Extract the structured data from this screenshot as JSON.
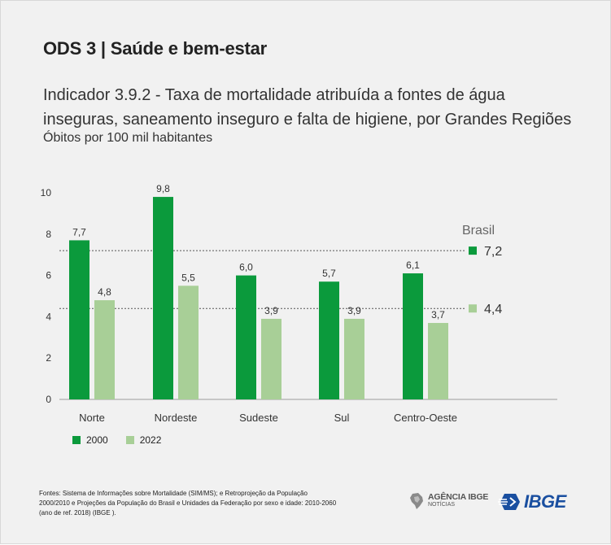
{
  "header": {
    "title": "ODS 3 | Saúde e bem-estar",
    "subtitle_line1": "Indicador 3.9.2 - Taxa de mortalidade atribuída a fontes de água",
    "subtitle_line2": "inseguras, saneamento inseguro e falta de higiene, por Grandes Regiões",
    "unit": "Óbitos por 100 mil habitantes"
  },
  "chart_data": {
    "type": "bar",
    "categories": [
      "Norte",
      "Nordeste",
      "Sudeste",
      "Sul",
      "Centro-Oeste"
    ],
    "series": [
      {
        "name": "2000",
        "values": [
          7.7,
          9.8,
          6.0,
          5.7,
          6.1
        ],
        "labels": [
          "7,7",
          "9,8",
          "6,0",
          "5,7",
          "6,1"
        ],
        "color": "#0b9a3c"
      },
      {
        "name": "2022",
        "values": [
          4.8,
          5.5,
          3.9,
          3.9,
          3.7
        ],
        "labels": [
          "4,8",
          "5,5",
          "3,9",
          "3,9",
          "3,7"
        ],
        "color": "#a8cf97"
      }
    ],
    "ylim": [
      0,
      10
    ],
    "yticks": [
      0,
      2,
      4,
      6,
      8,
      10
    ],
    "grid": false,
    "reference": {
      "label": "Brasil",
      "lines": [
        {
          "series": "2000",
          "value": 7.2,
          "label": "7,2"
        },
        {
          "series": "2022",
          "value": 4.4,
          "label": "4,4"
        }
      ]
    },
    "legend_position": "bottom-left"
  },
  "footer": {
    "sources_line1": "Fontes: Sistema de Informações sobre Mortalidade (SIM/MS); e Retroprojeção da População",
    "sources_line2": "2000/2010 e Projeções da População do Brasil e Unidades da Federação por sexo e idade: 2010-2060",
    "sources_line3": "(ano de ref. 2018) (IBGE ).",
    "agencia_logo": "AGÊNCIA IBGE",
    "agencia_sub": "NOTÍCIAS",
    "ibge_logo": "IBGE"
  },
  "colors": {
    "dark_green": "#0b9a3c",
    "light_green": "#a8cf97",
    "ibge_blue": "#1a4fa0"
  }
}
